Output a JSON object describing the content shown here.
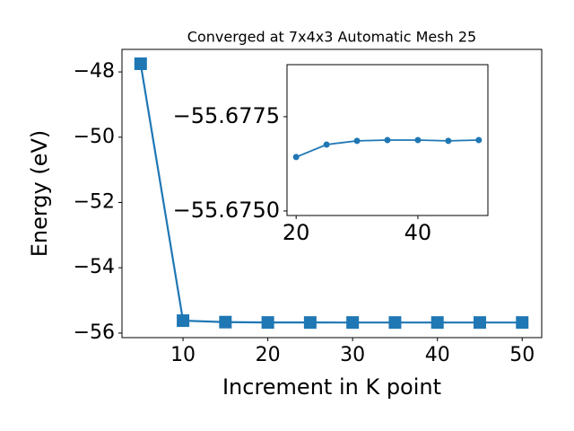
{
  "chart_data": [
    {
      "type": "line",
      "title": "Converged at 7x4x3 Automatic Mesh 25",
      "x_label": "Increment in K point",
      "y_label": "Energy (eV)",
      "x": [
        5,
        10,
        15,
        20,
        25,
        30,
        35,
        40,
        45,
        50
      ],
      "series": [
        {
          "color": "#1f77b4",
          "marker": "square",
          "values": [
            -47.75,
            -55.62,
            -55.665,
            -55.6764,
            -55.6768,
            -55.6769,
            -55.6769,
            -55.6769,
            -55.6769,
            -55.6769
          ]
        }
      ],
      "xlim": [
        2.8,
        52.3
      ],
      "ylim": [
        -56.14,
        -47.31
      ],
      "xticks": [
        10,
        20,
        30,
        40,
        50
      ],
      "yticks": [
        {
          "value": -56,
          "label": "−56"
        },
        {
          "value": -54,
          "label": "−54"
        },
        {
          "value": -52,
          "label": "−52"
        },
        {
          "value": -50,
          "label": "−50"
        },
        {
          "value": -48,
          "label": "−48"
        }
      ]
    },
    {
      "type": "line",
      "x": [
        20,
        25,
        30,
        35,
        40,
        45,
        50
      ],
      "series": [
        {
          "color": "#1f77b4",
          "marker": "circle",
          "values": [
            -55.67643,
            -55.67676,
            -55.67686,
            -55.67688,
            -55.67688,
            -55.67686,
            -55.67688
          ]
        }
      ],
      "xlim": [
        18.5,
        51.5
      ],
      "ylim": [
        -55.67488,
        -55.67888
      ],
      "xticks": [
        20,
        40
      ],
      "yticks": [
        {
          "value": -55.675,
          "label": "−55.6750"
        },
        {
          "value": -55.6775,
          "label": "−55.6775"
        }
      ]
    }
  ]
}
